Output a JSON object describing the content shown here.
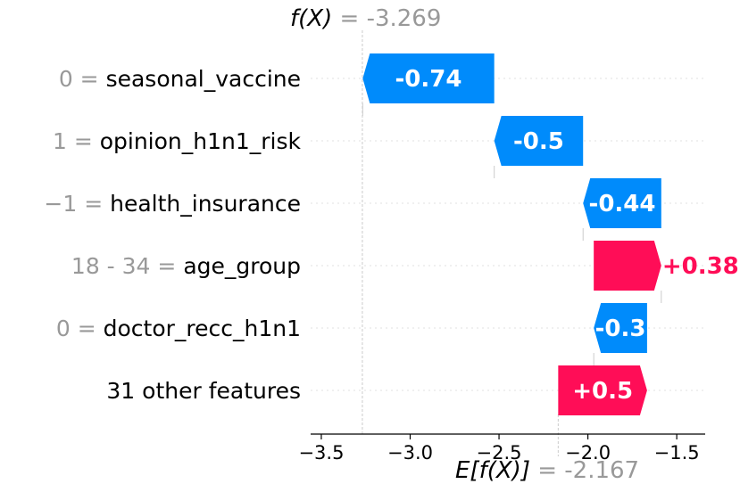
{
  "chart_data": {
    "type": "waterfall",
    "title": "",
    "xlabel": "",
    "ylabel": "",
    "xlim": [
      -3.56,
      -1.34
    ],
    "x_ticks": [
      -3.5,
      -3.0,
      -2.5,
      -2.0,
      -1.5
    ],
    "x_tick_labels": [
      "−3.5",
      "−3.0",
      "−2.5",
      "−2.0",
      "−1.5"
    ],
    "base_value": -2.167,
    "output_value": -3.269,
    "fx_label": "f(X)",
    "fx_value_text": " = -3.269",
    "efx_label": "E[f(X)]",
    "efx_value_text": " = -2.167",
    "features": [
      {
        "value_text": "0",
        "name": "seasonal_vaccine",
        "contribution": -0.74,
        "label": "-0.74",
        "start": -2.527
      },
      {
        "value_text": "1",
        "name": "opinion_h1n1_risk",
        "contribution": -0.5,
        "label": "-0.5",
        "start": -2.027
      },
      {
        "value_text": "−1",
        "name": "health_insurance",
        "contribution": -0.44,
        "label": "-0.44",
        "start": -1.587
      },
      {
        "value_text": "18 - 34 ",
        "name": "age_group",
        "contribution": 0.38,
        "label": "+0.38",
        "start": -1.967
      },
      {
        "value_text": "0",
        "name": "doctor_recc_h1n1",
        "contribution": -0.3,
        "label": "-0.3",
        "start": -1.667
      },
      {
        "value_text": "",
        "name": "31 other features",
        "contribution": 0.5,
        "label": "+0.5",
        "start": -2.167
      }
    ],
    "colors": {
      "positive": "#ff0d57",
      "negative": "#008bfb",
      "value_text": "#999999"
    },
    "grid": false
  }
}
